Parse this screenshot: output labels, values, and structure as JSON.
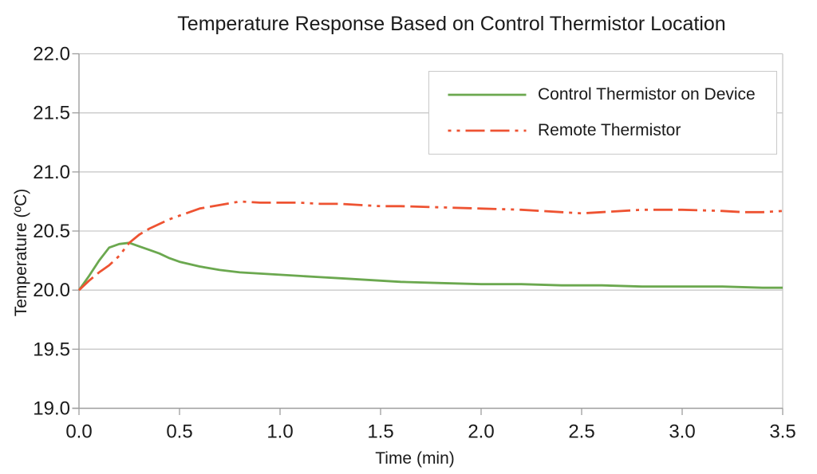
{
  "title": "Temperature Response Based on Control Thermistor Location",
  "chart_data": {
    "type": "line",
    "title": "Temperature Response Based on Control Thermistor Location",
    "xlabel": "Time (min)",
    "ylabel": "Temperature (ºC)",
    "xlim": [
      0,
      3.5
    ],
    "ylim": [
      19.0,
      22.0
    ],
    "xticks": [
      "0.0",
      "0.5",
      "1.0",
      "1.5",
      "2.0",
      "2.5",
      "3.0",
      "3.5"
    ],
    "yticks": [
      "19.0",
      "19.5",
      "20.0",
      "20.5",
      "21.0",
      "21.5",
      "22.0"
    ],
    "grid": "horizontal",
    "legend_position": "top-right-inside",
    "colors": {
      "grid": "#c9c9c9",
      "axis": "#9e9e9e",
      "text": "#1a1a1a",
      "background": "#ffffff"
    },
    "series": [
      {
        "id": "control",
        "name": "Control Thermistor on Device",
        "color": "#6ba84f",
        "line_style": "solid",
        "line_width": 2.8,
        "x": [
          0,
          0.05,
          0.1,
          0.15,
          0.2,
          0.25,
          0.3,
          0.35,
          0.4,
          0.45,
          0.5,
          0.6,
          0.7,
          0.8,
          0.9,
          1.0,
          1.1,
          1.2,
          1.3,
          1.4,
          1.5,
          1.6,
          1.8,
          2.0,
          2.2,
          2.4,
          2.6,
          2.8,
          3.0,
          3.2,
          3.4,
          3.5
        ],
        "y": [
          20.0,
          20.12,
          20.25,
          20.36,
          20.39,
          20.4,
          20.37,
          20.34,
          20.31,
          20.27,
          20.24,
          20.2,
          20.17,
          20.15,
          20.14,
          20.13,
          20.12,
          20.11,
          20.1,
          20.09,
          20.08,
          20.07,
          20.06,
          20.05,
          20.05,
          20.04,
          20.04,
          20.03,
          20.03,
          20.03,
          20.02,
          20.02
        ]
      },
      {
        "id": "remote",
        "name": "Remote Thermistor",
        "color": "#ee5332",
        "line_style": "dash-dash-dot-dot",
        "line_width": 2.8,
        "x": [
          0,
          0.05,
          0.1,
          0.15,
          0.2,
          0.25,
          0.3,
          0.35,
          0.4,
          0.45,
          0.5,
          0.6,
          0.7,
          0.8,
          0.9,
          1.0,
          1.1,
          1.2,
          1.3,
          1.4,
          1.5,
          1.6,
          1.8,
          2.0,
          2.2,
          2.4,
          2.5,
          2.6,
          2.8,
          3.0,
          3.2,
          3.3,
          3.4,
          3.5
        ],
        "y": [
          20.0,
          20.08,
          20.15,
          20.21,
          20.29,
          20.4,
          20.47,
          20.52,
          20.56,
          20.6,
          20.63,
          20.69,
          20.72,
          20.75,
          20.74,
          20.74,
          20.74,
          20.73,
          20.73,
          20.72,
          20.71,
          20.71,
          20.7,
          20.69,
          20.68,
          20.66,
          20.65,
          20.66,
          20.68,
          20.68,
          20.67,
          20.66,
          20.66,
          20.67
        ]
      }
    ]
  }
}
